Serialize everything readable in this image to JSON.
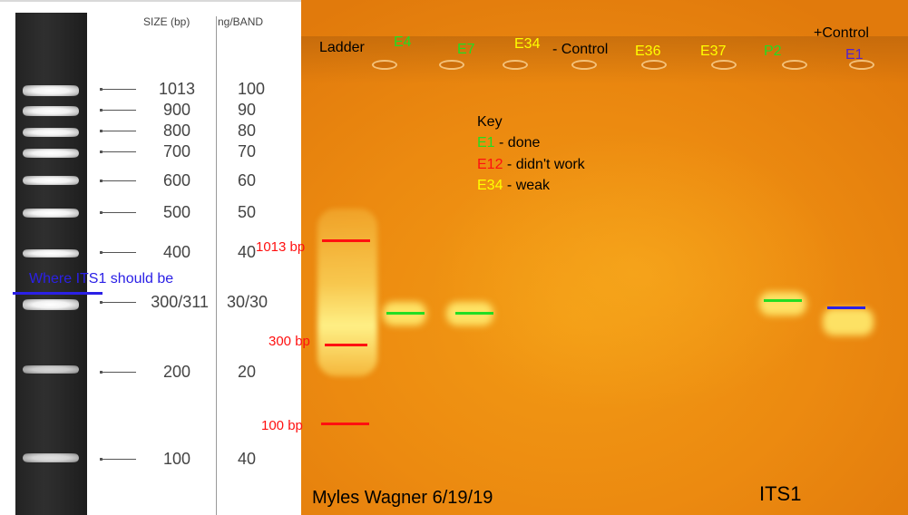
{
  "reference_ladder": {
    "size_header": "SIZE (bp)",
    "ng_header": "ng/BAND",
    "rows": [
      {
        "size": "1013",
        "ng": "100"
      },
      {
        "size": "900",
        "ng": "90"
      },
      {
        "size": "800",
        "ng": "80"
      },
      {
        "size": "700",
        "ng": "70"
      },
      {
        "size": "600",
        "ng": "60"
      },
      {
        "size": "500",
        "ng": "50"
      },
      {
        "size": "400",
        "ng": "40"
      },
      {
        "size": "300/311",
        "ng": "30/30"
      },
      {
        "size": "200",
        "ng": "20"
      },
      {
        "size": "100",
        "ng": "40"
      }
    ],
    "annotation": "Where ITS1 should be",
    "annotation_color": "#2b20e6"
  },
  "gel": {
    "lanes": [
      {
        "label": "Ladder",
        "color": "#000000"
      },
      {
        "label": "E4",
        "color": "#22dd22"
      },
      {
        "label": "E7",
        "color": "#22dd22"
      },
      {
        "label": "E34",
        "color": "#ffff00"
      },
      {
        "label": "- Control",
        "color": "#000000"
      },
      {
        "label": "E36",
        "color": "#ffff00"
      },
      {
        "label": "E37",
        "color": "#ffff00"
      },
      {
        "label": "P2",
        "color": "#22dd22"
      },
      {
        "label": "+Control",
        "color": "#000000"
      },
      {
        "label": "E1",
        "color": "#5522cc"
      }
    ],
    "key": {
      "title": "Key",
      "items": [
        {
          "code": "E1",
          "text": " - done",
          "color": "#22dd22"
        },
        {
          "code": "E12",
          "text": " - didn't work",
          "color": "#ff1010"
        },
        {
          "code": "E34",
          "text": " - weak",
          "color": "#ffff00"
        }
      ]
    },
    "size_markers": [
      {
        "label": "1013 bp"
      },
      {
        "label": "300 bp"
      },
      {
        "label": "100 bp"
      }
    ],
    "author_date": "Myles Wagner 6/19/19",
    "target": "ITS1",
    "colors": {
      "marker_red": "#ff1010",
      "done_green": "#22dd22",
      "positive_blue": "#2b20e6"
    }
  }
}
